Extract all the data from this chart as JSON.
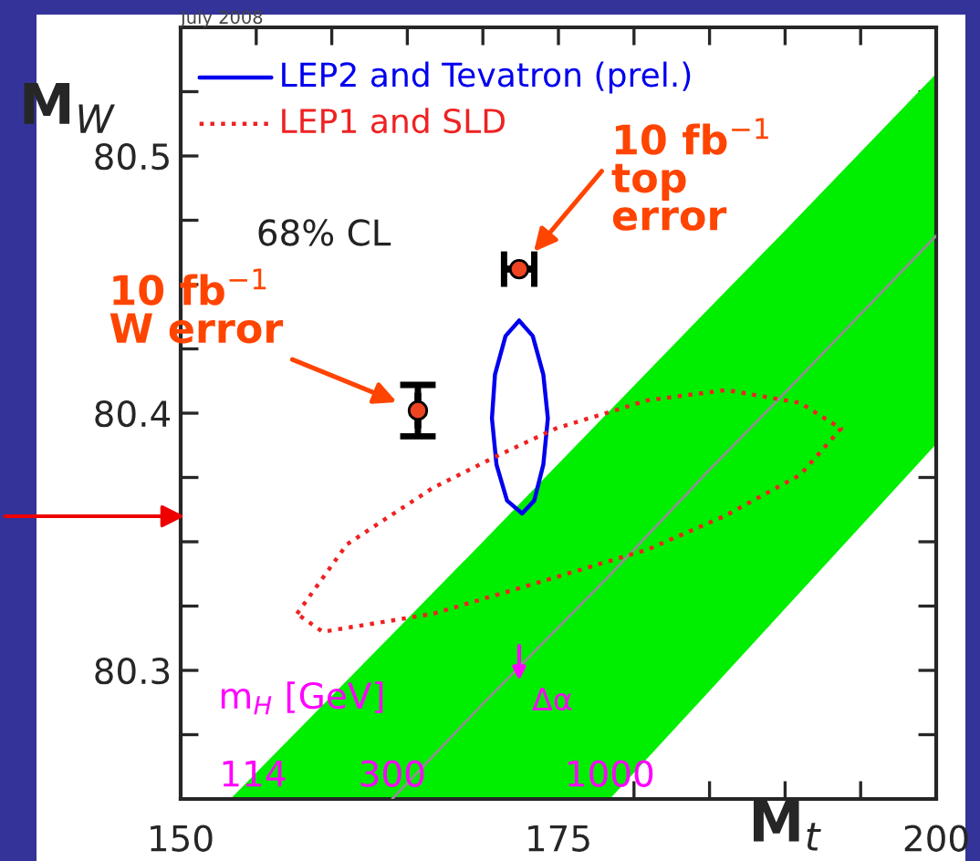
{
  "chart_data": {
    "type": "line",
    "xlabel": "M$_{t}$",
    "ylabel": "M$_{W}$",
    "xlim": [
      150,
      200
    ],
    "ylim": [
      80.25,
      80.55
    ],
    "xticks": [
      150,
      {
        "value": 155,
        "label": null
      },
      {
        "value": 160,
        "label": null
      },
      {
        "value": 165,
        "label": null
      },
      {
        "value": 170,
        "label": null
      },
      175,
      {
        "value": 180,
        "label": null
      },
      {
        "value": 185,
        "label": null
      },
      {
        "value": 190,
        "label": null
      },
      {
        "value": 195,
        "label": null
      },
      200
    ],
    "yticks": [
      {
        "value": 80.275,
        "label": null
      },
      80.3,
      {
        "value": 80.325,
        "label": null
      },
      {
        "value": 80.35,
        "label": null
      },
      {
        "value": 80.375,
        "label": null
      },
      80.4,
      {
        "value": 80.425,
        "label": null
      },
      {
        "value": 80.45,
        "label": null
      },
      {
        "value": 80.475,
        "label": null
      },
      80.5,
      {
        "value": 80.525,
        "label": null
      }
    ],
    "grid": false,
    "series": [
      {
        "color": "#909090",
        "x": [
          153.3,
          164,
          170,
          178.4,
          185,
          190,
          200
        ],
        "values": [
          null,
          80.25,
          80.287,
          80.337,
          80.378,
          80.408,
          80.469
        ],
        "lower": [
          80.25,
          80.25,
          80.25,
          80.25,
          80.292,
          80.324,
          80.388
        ],
        "upper": [
          80.25,
          80.314,
          80.35,
          80.401,
          80.441,
          80.471,
          80.532
        ]
      },
      {
        "type": "scatter",
        "color": "#ee4422",
        "marker": "circle",
        "x": [
          165.7,
          172.4
        ],
        "values": [
          80.401,
          80.456
        ],
        "errors": [
          0.01,
          null
        ],
        "xerrors": [
          null,
          1.0
        ]
      }
    ],
    "annotations": [
      "July 2008",
      "LEP2 and Tevatron (prel.)",
      "LEP1 and SLD",
      "68% CL",
      "m$_{H}$ [GeV]",
      {
        "text": "114",
        "x": 154.8,
        "y": 80.25
      },
      {
        "text": "300",
        "x": 164.0,
        "y": 80.25
      },
      {
        "text": "1000",
        "x": 178.4,
        "y": 80.25
      },
      "Δα",
      "10 fb$^{−1}$\ntop\nerror",
      "10 fb$^{−1}$\nW error"
    ]
  }
}
